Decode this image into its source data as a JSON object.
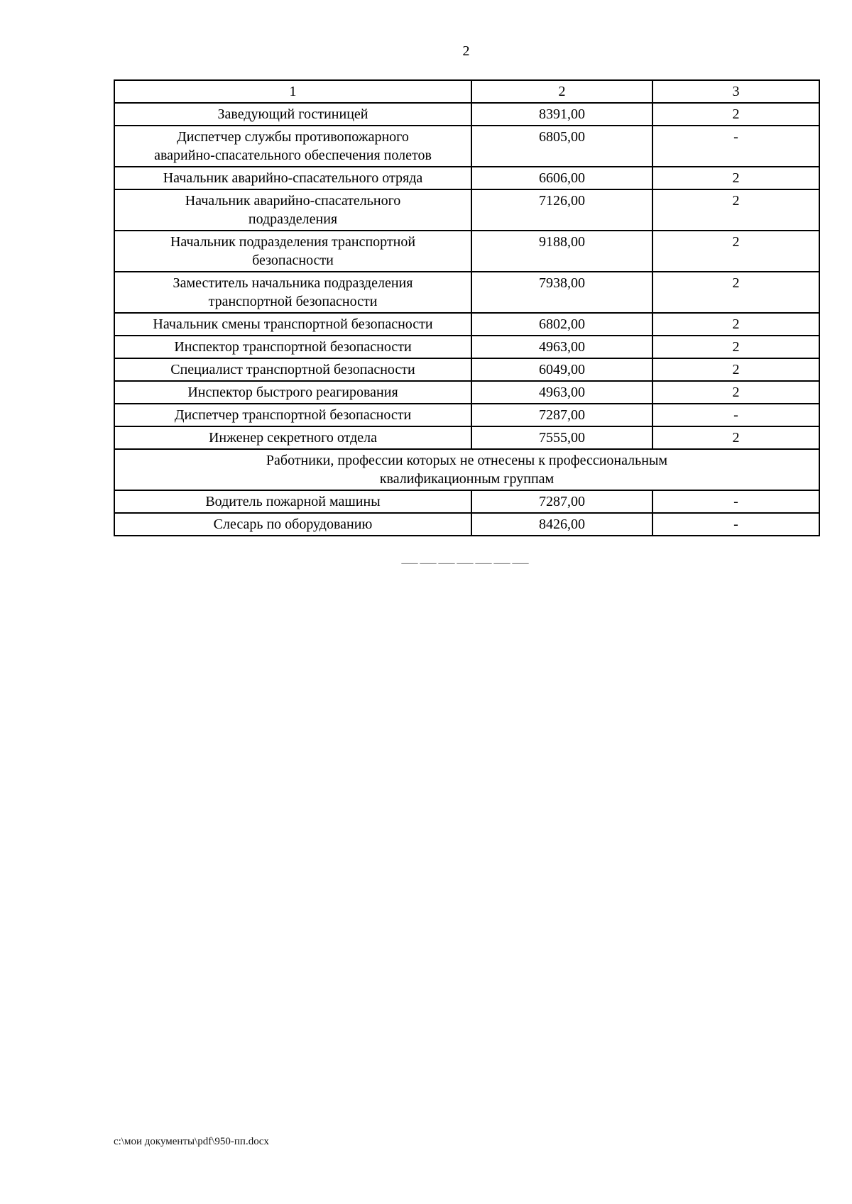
{
  "page": {
    "number": "2",
    "divider": "———————",
    "footer_path": "с:\\мои документы\\pdf\\950-пп.docx"
  },
  "table": {
    "header": [
      "1",
      "2",
      "3"
    ],
    "rows": [
      {
        "position": "Заведующий гостиницей",
        "salary": "8391,00",
        "grade": "2"
      },
      {
        "position": "Диспетчер службы противопожарного\nаварийно-спасательного обеспечения полетов",
        "salary": "6805,00",
        "grade": "-"
      },
      {
        "position": "Начальник аварийно-спасательного отряда",
        "salary": "6606,00",
        "grade": "2"
      },
      {
        "position": "Начальник аварийно-спасательного\nподразделения",
        "salary": "7126,00",
        "grade": "2"
      },
      {
        "position": "Начальник подразделения транспортной\nбезопасности",
        "salary": "9188,00",
        "grade": "2"
      },
      {
        "position": "Заместитель начальника подразделения\nтранспортной безопасности",
        "salary": "7938,00",
        "grade": "2"
      },
      {
        "position": "Начальник смены транспортной безопасности",
        "salary": "6802,00",
        "grade": "2"
      },
      {
        "position": "Инспектор транспортной безопасности",
        "salary": "4963,00",
        "grade": "2"
      },
      {
        "position": "Специалист транспортной безопасности",
        "salary": "6049,00",
        "grade": "2"
      },
      {
        "position": "Инспектор быстрого реагирования",
        "salary": "4963,00",
        "grade": "2"
      },
      {
        "position": "Диспетчер транспортной безопасности",
        "salary": "7287,00",
        "grade": "-"
      },
      {
        "position": "Инженер секретного отдела",
        "salary": "7555,00",
        "grade": "2"
      },
      {
        "section": "Работники, профессии которых не отнесены к профессиональным\nквалификационным группам"
      },
      {
        "position": "Водитель пожарной машины",
        "salary": "7287,00",
        "grade": "-"
      },
      {
        "position": "Слесарь по оборудованию",
        "salary": "8426,00",
        "grade": "-"
      }
    ]
  }
}
